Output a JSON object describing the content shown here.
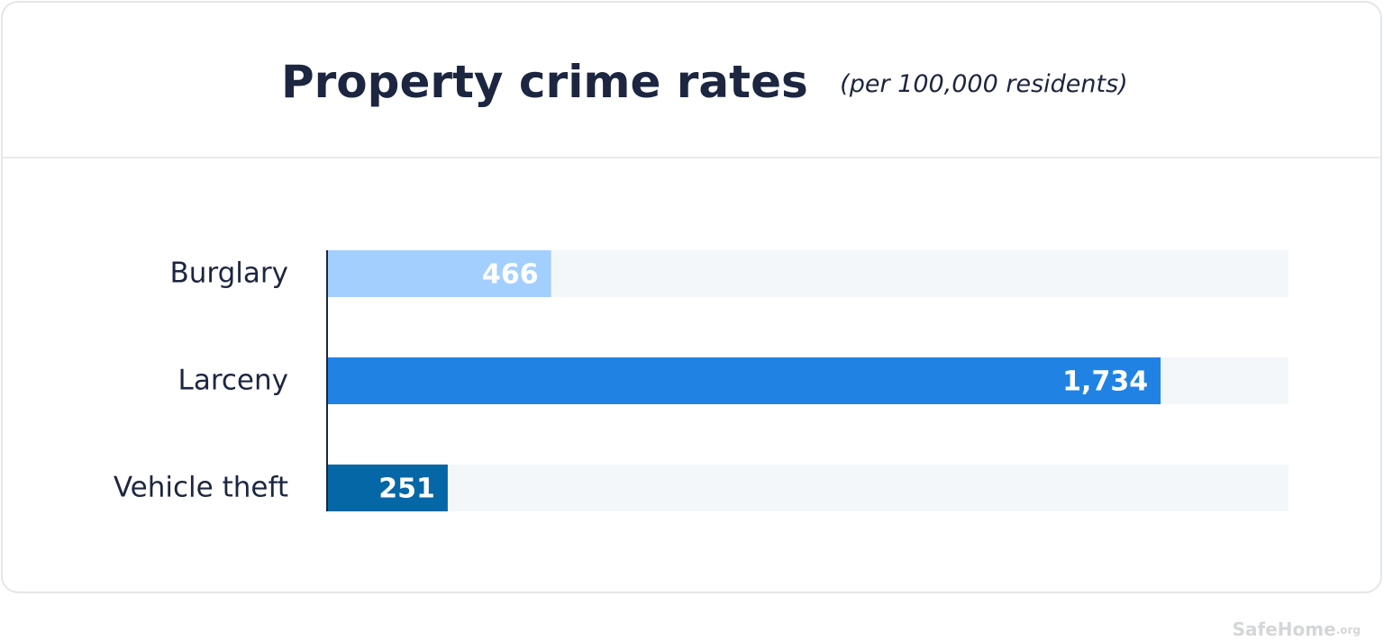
{
  "chart_data": {
    "type": "bar",
    "orientation": "horizontal",
    "title": "Property crime rates",
    "subtitle": "(per 100,000 residents)",
    "categories": [
      "Burglary",
      "Larceny",
      "Vehicle theft"
    ],
    "values": [
      466,
      1734,
      251
    ],
    "value_labels": [
      "466",
      "1,734",
      "251"
    ],
    "colors": [
      "#a3cfff",
      "#2083e4",
      "#0567a6"
    ],
    "track_color": "#f4f7f9",
    "xlim": [
      0,
      2000
    ],
    "brand": "SafeHome",
    "brand_suffix": ".org"
  }
}
